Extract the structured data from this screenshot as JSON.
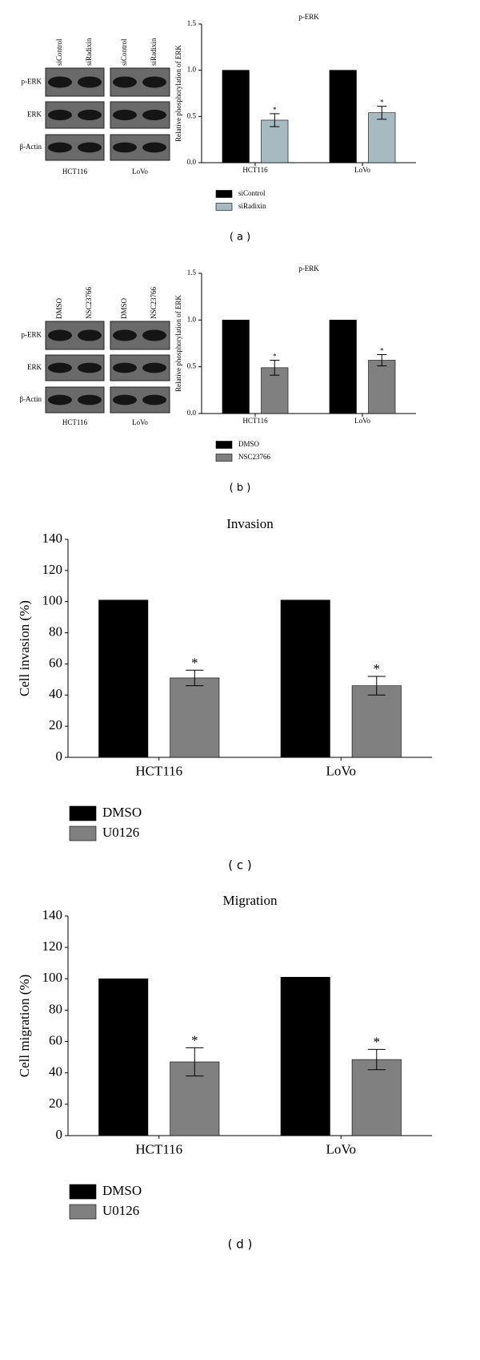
{
  "blots": [
    {
      "lanes": [
        "siControl",
        "siRadixin",
        "siControl",
        "siRadixin"
      ],
      "rows": [
        "p-ERK",
        "ERK",
        "β-Actin"
      ],
      "groups": [
        "HCT116",
        "LoVo"
      ]
    },
    {
      "lanes": [
        "DMSO",
        "NSC23766",
        "DMSO",
        "NSC23766"
      ],
      "rows": [
        "p-ERK",
        "ERK",
        "β-Actin"
      ],
      "groups": [
        "HCT116",
        "LoVo"
      ]
    }
  ],
  "chart_data": [
    {
      "type": "bar",
      "title": "p-ERK",
      "y_label": "Relative phosphorylation of ERK",
      "caption": "( a )",
      "categories": [
        "HCT116",
        "LoVo"
      ],
      "series": [
        {
          "name": "siControl",
          "color": "#000000",
          "values": [
            1,
            1
          ]
        },
        {
          "name": "siRadixin",
          "color": "#a7b9c1",
          "values": [
            0.46,
            0.54
          ],
          "errors": [
            0.07,
            0.07
          ],
          "significance": [
            "*",
            "*"
          ]
        }
      ],
      "ylim": [
        0,
        1.5
      ],
      "yticks": [
        {
          "value": 0,
          "label": "0.0"
        },
        0.5,
        {
          "value": 1,
          "label": "1.0"
        },
        1.5
      ]
    },
    {
      "type": "bar",
      "title": "p-ERK",
      "y_label": "Relative phosphorylation of ERK",
      "caption": "( b )",
      "categories": [
        "HCT116",
        "LoVo"
      ],
      "series": [
        {
          "name": "DMSO",
          "color": "#000000",
          "values": [
            1,
            1
          ]
        },
        {
          "name": "NSC23766",
          "color": "#808080",
          "values": [
            0.49,
            0.57
          ],
          "errors": [
            0.08,
            0.06
          ],
          "significance": [
            "*",
            "*"
          ]
        }
      ],
      "ylim": [
        0,
        1.5
      ],
      "yticks": [
        {
          "value": 0,
          "label": "0.0"
        },
        0.5,
        {
          "value": 1,
          "label": "1.0"
        },
        1.5
      ]
    },
    {
      "type": "bar",
      "title": "Invasion",
      "y_label": "Cell invasion (%)",
      "caption": "( c )",
      "categories": [
        "HCT116",
        "LoVo"
      ],
      "series": [
        {
          "name": "DMSO",
          "color": "#000000",
          "values": [
            101,
            101
          ]
        },
        {
          "name": "U0126",
          "color": "#808080",
          "values": [
            51,
            46
          ],
          "errors": [
            5,
            6
          ],
          "significance": [
            "*",
            "*"
          ]
        }
      ],
      "ylim": [
        0,
        140
      ],
      "yticks": [
        0,
        20,
        40,
        60,
        80,
        100,
        120,
        140
      ]
    },
    {
      "type": "bar",
      "title": "Migration",
      "y_label": "Cell migration (%)",
      "caption": "( d )",
      "categories": [
        "HCT116",
        "LoVo"
      ],
      "series": [
        {
          "name": "DMSO",
          "color": "#000000",
          "values": [
            100,
            101
          ]
        },
        {
          "name": "U0126",
          "color": "#808080",
          "values": [
            47,
            48.5
          ],
          "errors": [
            9,
            6.5
          ],
          "significance": [
            "*",
            "*"
          ]
        }
      ],
      "ylim": [
        0,
        140
      ],
      "yticks": [
        0,
        20,
        40,
        60,
        80,
        100,
        120,
        140
      ]
    }
  ]
}
